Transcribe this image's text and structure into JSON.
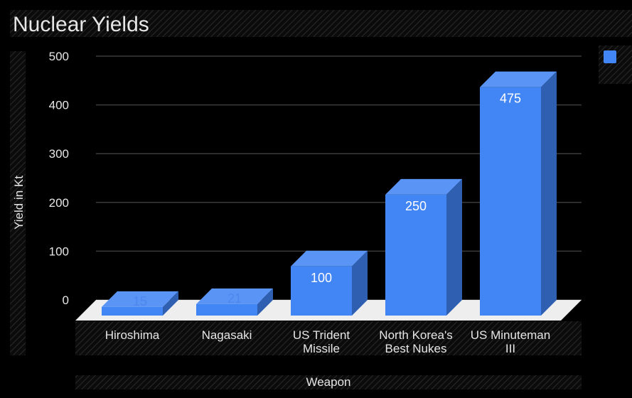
{
  "chart_data": {
    "type": "bar",
    "title": "Nuclear Yields",
    "xlabel": "Weapon",
    "ylabel": "Yield in Kt",
    "categories": [
      [
        "Hiroshima"
      ],
      [
        "Nagasaki"
      ],
      [
        "US Trident",
        "Missile"
      ],
      [
        "North Korea's",
        "Best Nukes"
      ],
      [
        "US Minuteman",
        "III"
      ]
    ],
    "values": [
      15,
      21,
      100,
      250,
      475
    ],
    "ylim": [
      0,
      500
    ],
    "yticks": [
      0,
      100,
      200,
      300,
      400,
      500
    ],
    "grid": true,
    "legend": {
      "position": "top-right",
      "label": ""
    },
    "style_3d": true,
    "colors": {
      "background": "#000000",
      "bar_front": "#4285f4",
      "bar_top": "#5a95f5",
      "bar_side": "#2f5fb0",
      "floor": "#eeeeee",
      "grid": "#3a3a3a",
      "text": "#e6e6e6",
      "label_small": "#4f86ee",
      "label_large": "#ffffff"
    }
  }
}
